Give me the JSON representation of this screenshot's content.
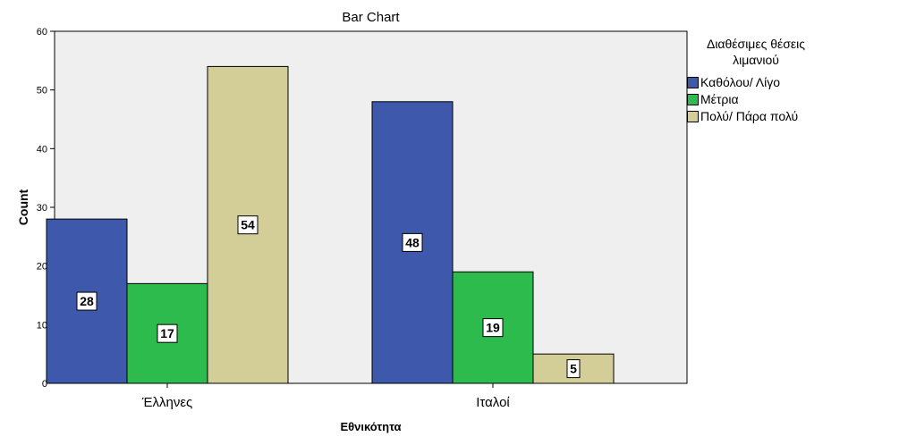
{
  "chart_data": {
    "type": "bar",
    "title": "Bar Chart",
    "xlabel": "Εθνικότητα",
    "ylabel": "Count",
    "categories": [
      "Έλληνες",
      "Ιταλοί"
    ],
    "ylim": [
      0,
      60
    ],
    "yticks": [
      "0",
      "10",
      "20",
      "30",
      "40",
      "50",
      "60"
    ],
    "legend_title": "Διαθέσιμες θέσεις λιμανιού",
    "legend_title_lines": [
      "Διαθέσιμες θέσεις",
      "λιμανιού"
    ],
    "legend_position": "right",
    "grid": false,
    "series": [
      {
        "name": "Καθόλου/ Λίγο",
        "color": "#3e58ac",
        "values": [
          28,
          48
        ]
      },
      {
        "name": "Μέτρια",
        "color": "#2dbb4d",
        "values": [
          17,
          19
        ]
      },
      {
        "name": "Πολύ/ Πάρα πολύ",
        "color": "#d3ce97",
        "values": [
          54,
          5
        ]
      }
    ],
    "plot_background": "#efefef"
  }
}
